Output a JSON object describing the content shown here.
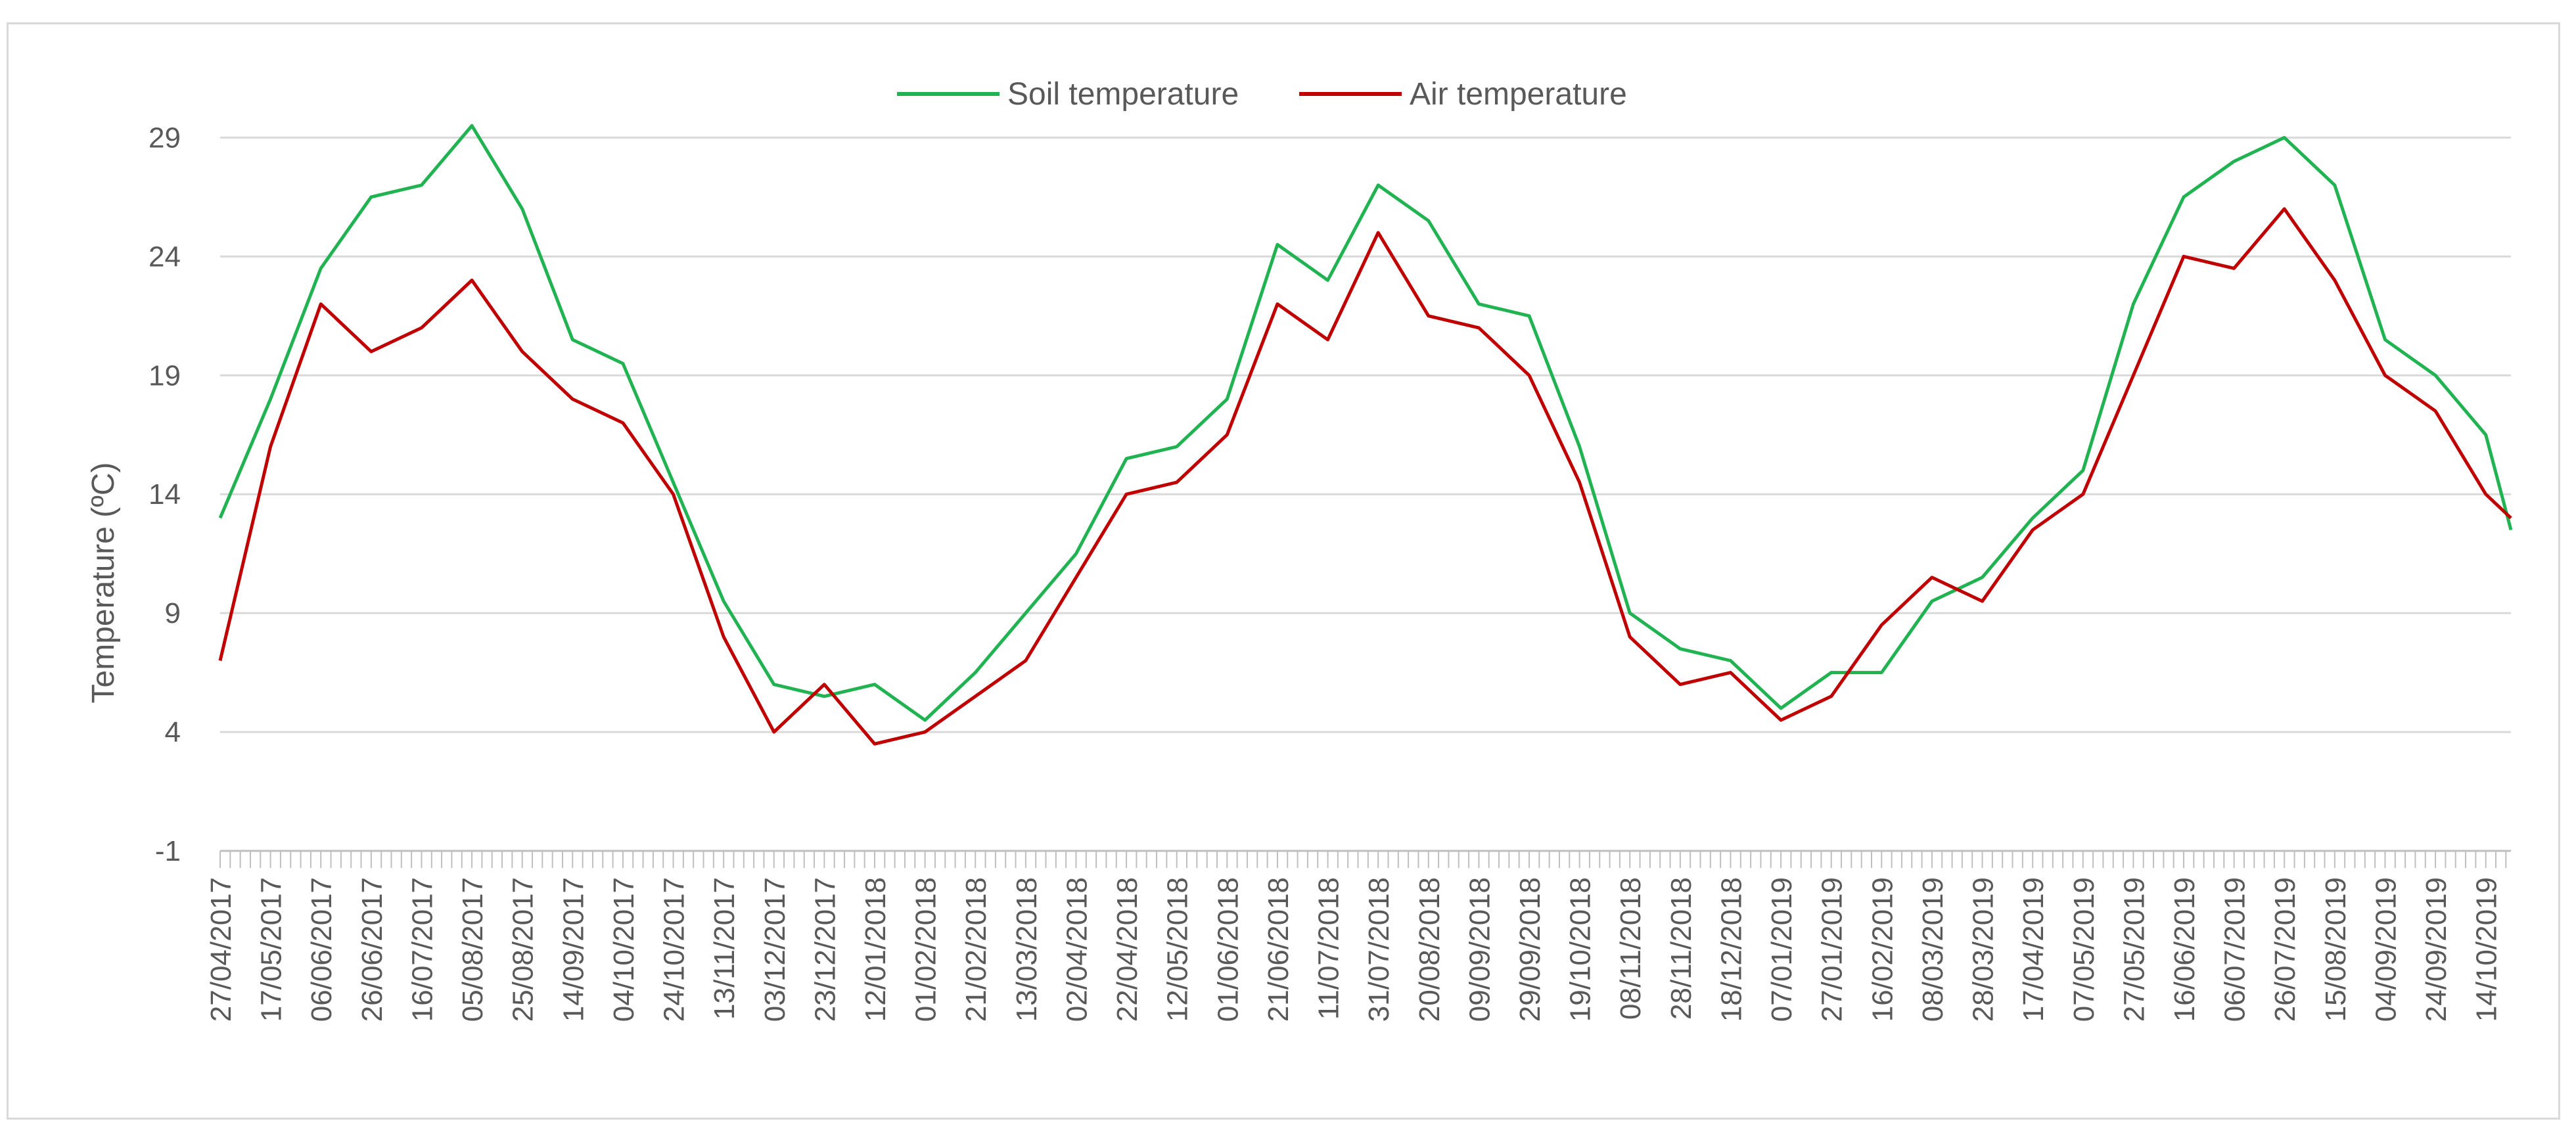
{
  "chart_data": {
    "type": "line",
    "title": "",
    "xlabel": "",
    "ylabel": "Temperature (ºC)",
    "yticks": [
      -1,
      4,
      9,
      14,
      19,
      24,
      29
    ],
    "ylim": [
      -1,
      31
    ],
    "xlim": [
      "2017-04-27",
      "2019-10-24"
    ],
    "x_tick_labels": [
      "27/04/2017",
      "17/05/2017",
      "06/06/2017",
      "26/06/2017",
      "16/07/2017",
      "05/08/2017",
      "25/08/2017",
      "14/09/2017",
      "04/10/2017",
      "24/10/2017",
      "13/11/2017",
      "03/12/2017",
      "23/12/2017",
      "12/01/2018",
      "01/02/2018",
      "21/02/2018",
      "13/03/2018",
      "02/04/2018",
      "22/04/2018",
      "12/05/2018",
      "01/06/2018",
      "21/06/2018",
      "11/07/2018",
      "31/07/2018",
      "20/08/2018",
      "09/09/2018",
      "29/09/2018",
      "19/10/2018",
      "08/11/2018",
      "28/11/2018",
      "18/12/2018",
      "07/01/2019",
      "27/01/2019",
      "16/02/2019",
      "08/03/2019",
      "28/03/2019",
      "17/04/2019",
      "07/05/2019",
      "27/05/2019",
      "16/06/2019",
      "06/07/2019",
      "26/07/2019",
      "15/08/2019",
      "04/09/2019",
      "24/09/2019",
      "14/10/2019"
    ],
    "grid": "horizontal",
    "legend_position": "top",
    "series": [
      {
        "name": "Soil temperature",
        "color": "#21b352",
        "x": [
          "2017-04-27",
          "2017-05-17",
          "2017-06-06",
          "2017-06-26",
          "2017-07-16",
          "2017-08-05",
          "2017-08-25",
          "2017-09-14",
          "2017-10-04",
          "2017-10-24",
          "2017-11-13",
          "2017-12-03",
          "2017-12-23",
          "2018-01-12",
          "2018-02-01",
          "2018-02-21",
          "2018-03-13",
          "2018-04-02",
          "2018-04-22",
          "2018-05-12",
          "2018-06-01",
          "2018-06-21",
          "2018-07-11",
          "2018-07-31",
          "2018-08-20",
          "2018-09-09",
          "2018-09-29",
          "2018-10-19",
          "2018-11-08",
          "2018-11-28",
          "2018-12-18",
          "2019-01-07",
          "2019-01-27",
          "2019-02-16",
          "2019-03-08",
          "2019-03-28",
          "2019-04-17",
          "2019-05-07",
          "2019-05-27",
          "2019-06-16",
          "2019-07-06",
          "2019-07-26",
          "2019-08-15",
          "2019-09-04",
          "2019-09-24",
          "2019-10-14",
          "2019-10-24"
        ],
        "values": [
          13.0,
          18.0,
          23.5,
          26.5,
          27.0,
          29.5,
          26.0,
          20.5,
          19.5,
          14.5,
          9.5,
          6.0,
          5.5,
          6.0,
          4.5,
          6.5,
          9.0,
          11.5,
          15.5,
          16.0,
          18.0,
          24.5,
          23.0,
          27.0,
          25.5,
          22.0,
          21.5,
          16.0,
          9.0,
          7.5,
          7.0,
          5.0,
          6.5,
          6.5,
          9.5,
          10.5,
          13.0,
          15.0,
          22.0,
          26.5,
          28.0,
          29.0,
          27.0,
          20.5,
          19.0,
          16.5,
          12.5
        ]
      },
      {
        "name": "Air temperature",
        "color": "#c00000",
        "x": [
          "2017-04-27",
          "2017-05-17",
          "2017-06-06",
          "2017-06-26",
          "2017-07-16",
          "2017-08-05",
          "2017-08-25",
          "2017-09-14",
          "2017-10-04",
          "2017-10-24",
          "2017-11-13",
          "2017-12-03",
          "2017-12-23",
          "2018-01-12",
          "2018-02-01",
          "2018-02-21",
          "2018-03-13",
          "2018-04-02",
          "2018-04-22",
          "2018-05-12",
          "2018-06-01",
          "2018-06-21",
          "2018-07-11",
          "2018-07-31",
          "2018-08-20",
          "2018-09-09",
          "2018-09-29",
          "2018-10-19",
          "2018-11-08",
          "2018-11-28",
          "2018-12-18",
          "2019-01-07",
          "2019-01-27",
          "2019-02-16",
          "2019-03-08",
          "2019-03-28",
          "2019-04-17",
          "2019-05-07",
          "2019-05-27",
          "2019-06-16",
          "2019-07-06",
          "2019-07-26",
          "2019-08-15",
          "2019-09-04",
          "2019-09-24",
          "2019-10-14",
          "2019-10-24"
        ],
        "values": [
          7.0,
          16.0,
          22.0,
          20.0,
          21.0,
          23.0,
          20.0,
          18.0,
          17.0,
          14.0,
          8.0,
          4.0,
          6.0,
          3.5,
          4.0,
          5.5,
          7.0,
          10.5,
          14.0,
          14.5,
          16.5,
          22.0,
          20.5,
          25.0,
          21.5,
          21.0,
          19.0,
          14.5,
          8.0,
          6.0,
          6.5,
          4.5,
          5.5,
          8.5,
          10.5,
          9.5,
          12.5,
          14.0,
          19.0,
          24.0,
          23.5,
          26.0,
          23.0,
          19.0,
          17.5,
          14.0,
          13.0
        ]
      }
    ]
  }
}
